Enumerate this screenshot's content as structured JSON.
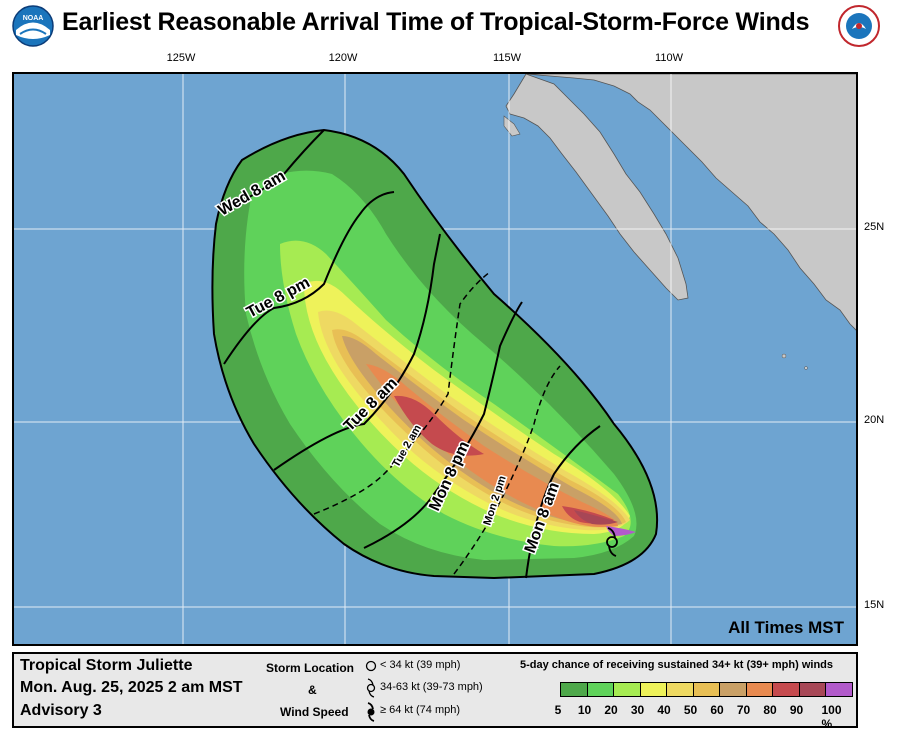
{
  "header": {
    "title": "Earliest Reasonable Arrival Time of Tropical-Storm-Force Winds",
    "left_logo_text": "NOAA",
    "right_logo_text": "NATIONAL WEATHER SERVICE"
  },
  "map": {
    "longitude_labels": [
      "125W",
      "120W",
      "115W",
      "110W"
    ],
    "latitude_labels": [
      "25N",
      "20N",
      "15N"
    ],
    "time_note": "All Times MST",
    "arrival_contours": [
      {
        "label": "Mon 8 am",
        "style": "solid"
      },
      {
        "label": "Mon 2 pm",
        "style": "dashed"
      },
      {
        "label": "Mon 8 pm",
        "style": "solid"
      },
      {
        "label": "Tue 2 am",
        "style": "dashed"
      },
      {
        "label": "Tue 8 am",
        "style": "solid"
      },
      {
        "label": "Tue 8 pm",
        "style": "solid"
      },
      {
        "label": "Wed 8 am",
        "style": "solid"
      }
    ],
    "colors": {
      "ocean": "#6ea4d1",
      "land": "#c8c8c8"
    }
  },
  "footer": {
    "storm_name": "Tropical Storm Juliette",
    "advisory_time": "Mon. Aug. 25, 2025  2 am MST",
    "advisory": "Advisory 3",
    "legend_label_1": "Storm Location",
    "legend_label_2": "&",
    "legend_label_3": "Wind Speed",
    "symbols": [
      {
        "icon": "open-circle-icon",
        "text": "< 34 kt (39 mph)"
      },
      {
        "icon": "tropical-storm-icon",
        "text": "34-63 kt (39-73 mph)"
      },
      {
        "icon": "hurricane-icon",
        "text": "≥ 64 kt (74 mph)"
      }
    ],
    "colorbar_title": "5-day chance of receiving sustained 34+ kt (39+ mph) winds",
    "colorbar": [
      {
        "label": "5",
        "color": "#4ea84a"
      },
      {
        "label": "10",
        "color": "#5fd25a"
      },
      {
        "label": "20",
        "color": "#a6eb52"
      },
      {
        "label": "30",
        "color": "#eef25a"
      },
      {
        "label": "40",
        "color": "#eed962"
      },
      {
        "label": "50",
        "color": "#e8bf55"
      },
      {
        "label": "60",
        "color": "#c9a066"
      },
      {
        "label": "70",
        "color": "#e88a50"
      },
      {
        "label": "80",
        "color": "#c54a4e"
      },
      {
        "label": "90",
        "color": "#a74756"
      },
      {
        "label": "100 %",
        "color": "#b25acb"
      }
    ]
  }
}
